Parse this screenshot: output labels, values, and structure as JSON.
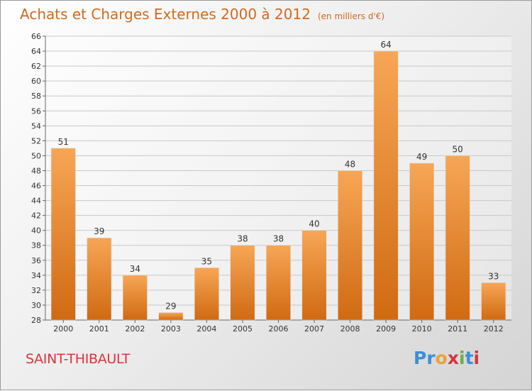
{
  "header": {
    "title": "Achats et Charges Externes 2000 à 2012",
    "unit": "(en milliers d'€)"
  },
  "footer": {
    "commune": "SAINT-THIBAULT",
    "logo_text": "Proxiti"
  },
  "colors": {
    "bar_light": "#f7a656",
    "bar_dark": "#d06a12",
    "title": "#d2691e",
    "commune": "#d8353d",
    "logo": [
      "#3a8fd6",
      "#3a8fd6",
      "#e8a33c",
      "#d8353d",
      "#6ab04c",
      "#3a8fd6",
      "#d8353d"
    ]
  },
  "chart_data": {
    "type": "bar",
    "title": "Achats et Charges Externes 2000 à 2012",
    "subtitle": "(en milliers d'€)",
    "categories": [
      "2000",
      "2001",
      "2002",
      "2003",
      "2004",
      "2005",
      "2006",
      "2007",
      "2008",
      "2009",
      "2010",
      "2011",
      "2012"
    ],
    "values": [
      51,
      39,
      34,
      29,
      35,
      38,
      38,
      40,
      48,
      64,
      49,
      50,
      33
    ],
    "ylim": [
      28,
      66
    ],
    "yticks": [
      28,
      30,
      32,
      34,
      36,
      38,
      40,
      42,
      44,
      46,
      48,
      50,
      52,
      54,
      56,
      58,
      60,
      62,
      64,
      66
    ],
    "grid": true,
    "xlabel": "",
    "ylabel": ""
  }
}
